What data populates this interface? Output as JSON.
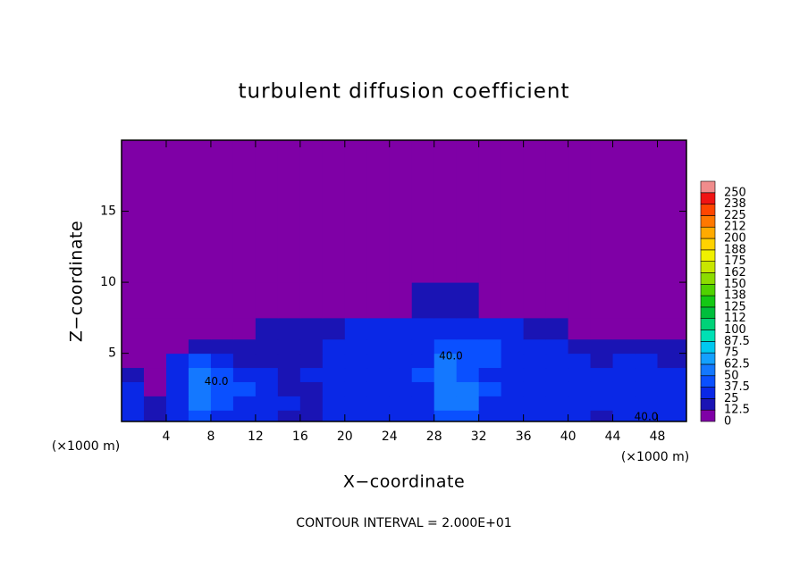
{
  "chart_data": {
    "type": "contour",
    "title": "turbulent diffusion coefficient",
    "xlabel": "X−coordinate",
    "ylabel": "Z−coordinate",
    "xunit_label": "(×1000 m)",
    "zunit_label": "(×1000 m)",
    "footnote": "CONTOUR INTERVAL = 2.000E+01",
    "xlim": [
      0,
      50.6
    ],
    "ylim": [
      0.2,
      20
    ],
    "xticks": [
      4,
      8,
      12,
      16,
      20,
      24,
      28,
      32,
      36,
      40,
      44,
      48
    ],
    "yticks": [
      5,
      10,
      15
    ],
    "xbins": [
      0,
      2,
      4,
      6,
      8,
      10,
      12,
      14,
      16,
      18,
      20,
      22,
      24,
      26,
      28,
      30,
      32,
      34,
      36,
      38,
      40,
      42,
      44,
      46,
      48,
      50.6
    ],
    "ybins": [
      0.2,
      1,
      2,
      3,
      4,
      5,
      6,
      7.5,
      10,
      20
    ],
    "values": [
      [
        25,
        20,
        25,
        40,
        35,
        30,
        25,
        20,
        20,
        25,
        25,
        25,
        30,
        30,
        45,
        40,
        30,
        25,
        25,
        25,
        25,
        20,
        25,
        30,
        25
      ],
      [
        30,
        20,
        30,
        50,
        45,
        35,
        30,
        25,
        20,
        25,
        25,
        30,
        30,
        35,
        55,
        50,
        35,
        30,
        25,
        25,
        30,
        25,
        30,
        35,
        30
      ],
      [
        25,
        10,
        30,
        50,
        45,
        40,
        25,
        20,
        20,
        25,
        25,
        30,
        30,
        35,
        55,
        50,
        40,
        25,
        25,
        30,
        25,
        30,
        25,
        35,
        30
      ],
      [
        15,
        10,
        35,
        50,
        45,
        35,
        25,
        20,
        25,
        25,
        30,
        30,
        30,
        40,
        55,
        45,
        35,
        30,
        30,
        25,
        30,
        25,
        25,
        30,
        25
      ],
      [
        5,
        5,
        25,
        40,
        35,
        20,
        20,
        20,
        20,
        25,
        25,
        25,
        30,
        35,
        50,
        45,
        40,
        30,
        30,
        30,
        25,
        20,
        25,
        25,
        20
      ],
      [
        5,
        5,
        5,
        15,
        15,
        15,
        15,
        15,
        20,
        25,
        25,
        25,
        30,
        35,
        45,
        40,
        45,
        30,
        30,
        25,
        20,
        15,
        20,
        15,
        15
      ],
      [
        5,
        5,
        5,
        5,
        5,
        10,
        15,
        15,
        15,
        20,
        25,
        25,
        25,
        30,
        35,
        35,
        30,
        25,
        20,
        15,
        10,
        5,
        5,
        5,
        5
      ],
      [
        5,
        5,
        5,
        5,
        5,
        5,
        5,
        5,
        5,
        5,
        5,
        5,
        5,
        15,
        20,
        20,
        5,
        5,
        5,
        5,
        5,
        5,
        5,
        5,
        5
      ],
      [
        5,
        5,
        5,
        5,
        5,
        5,
        5,
        5,
        5,
        5,
        5,
        5,
        5,
        5,
        5,
        5,
        5,
        5,
        5,
        5,
        5,
        5,
        5,
        5,
        5
      ]
    ],
    "annotations": [
      {
        "text": "40.0",
        "x": 8.5,
        "y": 3.0
      },
      {
        "text": "40.0",
        "x": 29.5,
        "y": 4.8
      },
      {
        "text": "40.0",
        "x": 47,
        "y": 0.5
      }
    ],
    "levels": [
      0,
      12.5,
      25,
      37.5,
      50,
      62.5,
      75,
      87.5,
      100,
      112,
      125,
      138,
      150,
      162,
      175,
      188,
      200,
      212,
      225,
      238,
      250
    ],
    "colors": [
      "#7f00a6",
      "#1a14b4",
      "#0a28e6",
      "#0a50ff",
      "#1478ff",
      "#14a0ff",
      "#00c8f0",
      "#00e0b4",
      "#00d278",
      "#00be3c",
      "#14c814",
      "#50d200",
      "#8cdc00",
      "#c8e600",
      "#f0f000",
      "#ffd200",
      "#ffaa00",
      "#ff7800",
      "#ff4600",
      "#f01414",
      "#f08c8c"
    ]
  }
}
